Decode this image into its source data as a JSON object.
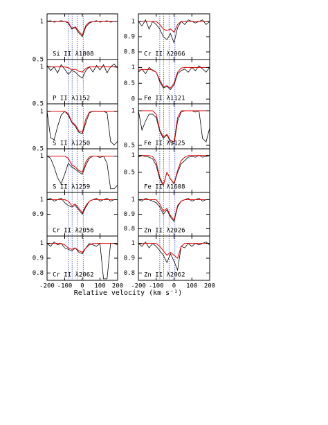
{
  "xlabel": "Relative velocity (km s⁻¹)",
  "vlines": [
    -80,
    -58,
    -28,
    5
  ],
  "chart_data": [
    {
      "type": "line",
      "label": "Si II λ1808",
      "ylim": [
        0.5,
        1.1
      ],
      "yticks": [
        0.5,
        1
      ],
      "xlim": [
        -200,
        200
      ],
      "xticks": [
        -200,
        -100,
        0,
        100,
        200
      ],
      "x": [
        -200,
        -180,
        -160,
        -140,
        -120,
        -100,
        -80,
        -60,
        -40,
        -20,
        0,
        20,
        40,
        60,
        80,
        100,
        120,
        140,
        160,
        180,
        200
      ],
      "series": [
        {
          "color": "#000000",
          "values": [
            1,
            1.01,
            0.99,
            1,
            1.01,
            1,
            0.98,
            0.9,
            0.92,
            0.85,
            0.8,
            0.93,
            0.98,
            1,
            1.01,
            0.99,
            1,
            1.01,
            0.99,
            1,
            1
          ]
        },
        {
          "color": "#e00000",
          "values": [
            1,
            1,
            1,
            1,
            1,
            1,
            0.99,
            0.91,
            0.93,
            0.87,
            0.82,
            0.95,
            0.99,
            1,
            1,
            1,
            1,
            1,
            1,
            1,
            1
          ]
        }
      ]
    },
    {
      "type": "line",
      "label": "P II λ1152",
      "ylim": [
        0.5,
        1.1
      ],
      "yticks": [
        0.5,
        1
      ],
      "xlim": [
        -200,
        200
      ],
      "xticks": [
        -200,
        -100,
        0,
        100,
        200
      ],
      "x": [
        -200,
        -180,
        -160,
        -140,
        -120,
        -100,
        -80,
        -60,
        -40,
        -20,
        0,
        20,
        40,
        60,
        80,
        100,
        120,
        140,
        160,
        180,
        200
      ],
      "series": [
        {
          "color": "#000000",
          "values": [
            1.02,
            0.95,
            1.0,
            0.92,
            1.03,
            0.97,
            0.9,
            0.95,
            0.93,
            0.88,
            0.85,
            0.95,
            1.0,
            0.93,
            1.02,
            0.96,
            1.03,
            0.92,
            1.0,
            1.04,
            0.98
          ]
        },
        {
          "color": "#e00000",
          "values": [
            1,
            1,
            1,
            1,
            1,
            1,
            0.99,
            0.96,
            0.97,
            0.94,
            0.93,
            0.98,
            1,
            1,
            1,
            1,
            1,
            1,
            1,
            1,
            1
          ]
        }
      ]
    },
    {
      "type": "line",
      "label": "S II λ1250",
      "ylim": [
        0.5,
        1.1
      ],
      "yticks": [
        0.5,
        1
      ],
      "xlim": [
        -200,
        200
      ],
      "xticks": [
        -200,
        -100,
        0,
        100,
        200
      ],
      "x": [
        -200,
        -180,
        -160,
        -140,
        -120,
        -100,
        -80,
        -60,
        -40,
        -20,
        0,
        20,
        40,
        60,
        80,
        100,
        120,
        140,
        160,
        180,
        200
      ],
      "series": [
        {
          "color": "#000000",
          "values": [
            1.0,
            0.65,
            0.62,
            0.8,
            0.95,
            1.0,
            0.95,
            0.85,
            0.8,
            0.72,
            0.7,
            0.85,
            0.98,
            1.0,
            1.0,
            1.0,
            1.0,
            0.98,
            0.6,
            0.55,
            0.6
          ]
        },
        {
          "color": "#e00000",
          "values": [
            1,
            1,
            1,
            1,
            1,
            1,
            0.97,
            0.86,
            0.82,
            0.74,
            0.72,
            0.9,
            0.99,
            1,
            1,
            1,
            1,
            1,
            1,
            1,
            1
          ]
        }
      ]
    },
    {
      "type": "line",
      "label": "S II λ1259",
      "ylim": [
        0.5,
        1.1
      ],
      "yticks": [
        1
      ],
      "xlim": [
        -200,
        200
      ],
      "xticks": [
        -200,
        -100,
        0,
        100,
        200
      ],
      "x": [
        -200,
        -180,
        -160,
        -140,
        -120,
        -100,
        -80,
        -60,
        -40,
        -20,
        0,
        20,
        40,
        60,
        80,
        100,
        120,
        140,
        160,
        180,
        200
      ],
      "series": [
        {
          "color": "#000000",
          "values": [
            1.0,
            0.97,
            0.85,
            0.7,
            0.62,
            0.75,
            0.9,
            0.85,
            0.82,
            0.78,
            0.75,
            0.88,
            0.97,
            1.0,
            1.0,
            0.98,
            1.0,
            0.9,
            0.55,
            0.55,
            0.6
          ]
        },
        {
          "color": "#e00000",
          "values": [
            1,
            1,
            1,
            1,
            1,
            1,
            0.97,
            0.88,
            0.85,
            0.8,
            0.78,
            0.92,
            0.99,
            1,
            1,
            1,
            1,
            1,
            1,
            1,
            1
          ]
        }
      ]
    },
    {
      "type": "line",
      "label": "Cr II λ2056",
      "ylim": [
        0.75,
        1.05
      ],
      "yticks": [
        0.9,
        1
      ],
      "xlim": [
        -200,
        200
      ],
      "xticks": [
        -200,
        -100,
        0,
        100,
        200
      ],
      "x": [
        -200,
        -180,
        -160,
        -140,
        -120,
        -100,
        -80,
        -60,
        -40,
        -20,
        0,
        20,
        40,
        60,
        80,
        100,
        120,
        140,
        160,
        180,
        200
      ],
      "series": [
        {
          "color": "#000000",
          "values": [
            1.0,
            1.01,
            0.99,
            1.0,
            1.01,
            0.98,
            0.96,
            0.95,
            0.96,
            0.93,
            0.9,
            0.95,
            0.99,
            1.0,
            1.01,
            0.99,
            1.0,
            1.01,
            0.99,
            1.0,
            1.0
          ]
        },
        {
          "color": "#e00000",
          "values": [
            1,
            1,
            1,
            1,
            1,
            1,
            0.99,
            0.96,
            0.97,
            0.94,
            0.91,
            0.96,
            0.99,
            1,
            1,
            1,
            1,
            1,
            1,
            1,
            1
          ]
        }
      ]
    },
    {
      "type": "line",
      "label": "Cr II λ2062",
      "ylim": [
        0.75,
        1.05
      ],
      "yticks": [
        0.8,
        0.9,
        1
      ],
      "xlim": [
        -200,
        200
      ],
      "xticks": [
        -200,
        -100,
        0,
        100,
        200
      ],
      "x": [
        -200,
        -180,
        -160,
        -140,
        -120,
        -100,
        -80,
        -60,
        -40,
        -20,
        0,
        20,
        40,
        60,
        80,
        100,
        120,
        140,
        160,
        180,
        200
      ],
      "series": [
        {
          "color": "#000000",
          "values": [
            1.0,
            0.98,
            1.01,
            0.99,
            1.0,
            0.97,
            0.96,
            0.95,
            0.97,
            0.94,
            0.93,
            0.97,
            1.0,
            0.99,
            0.98,
            1.0,
            0.76,
            0.76,
            1.0,
            1.0,
            0.99
          ]
        },
        {
          "color": "#e00000",
          "values": [
            1,
            1,
            1,
            1,
            1,
            0.99,
            0.97,
            0.96,
            0.97,
            0.95,
            0.94,
            0.97,
            0.99,
            1,
            1,
            1,
            1,
            1,
            1,
            1,
            1
          ]
        }
      ]
    },
    {
      "type": "line",
      "label": "Cr II λ2066",
      "ylim": [
        0.75,
        1.05
      ],
      "yticks": [
        0.8,
        0.9,
        1
      ],
      "xlim": [
        -200,
        200
      ],
      "xticks": [
        -200,
        -100,
        0,
        100,
        200
      ],
      "x": [
        -200,
        -180,
        -160,
        -140,
        -120,
        -100,
        -80,
        -60,
        -40,
        -20,
        0,
        20,
        40,
        60,
        80,
        100,
        120,
        140,
        160,
        180,
        200
      ],
      "series": [
        {
          "color": "#000000",
          "values": [
            1.0,
            0.97,
            1.01,
            0.95,
            1.0,
            0.98,
            0.95,
            0.9,
            0.88,
            0.92,
            0.86,
            0.96,
            1.0,
            0.98,
            1.01,
            1.0,
            0.99,
            1.0,
            1.01,
            0.98,
            1.0
          ]
        },
        {
          "color": "#e00000",
          "values": [
            1,
            1,
            1,
            1,
            1,
            1,
            0.98,
            0.95,
            0.94,
            0.95,
            0.93,
            0.98,
            1,
            1,
            1,
            1,
            1,
            1,
            1,
            1,
            1
          ]
        }
      ]
    },
    {
      "type": "line",
      "label": "Fe II λ1121",
      "ylim": [
        -0.15,
        1.25
      ],
      "yticks": [
        0,
        0.5,
        1
      ],
      "xlim": [
        -200,
        200
      ],
      "xticks": [
        -200,
        -100,
        0,
        100,
        200
      ],
      "x": [
        -200,
        -180,
        -160,
        -140,
        -120,
        -100,
        -80,
        -60,
        -40,
        -20,
        0,
        20,
        40,
        60,
        80,
        100,
        120,
        140,
        160,
        180,
        200
      ],
      "series": [
        {
          "color": "#000000",
          "values": [
            0.85,
            0.95,
            0.8,
            1.0,
            0.9,
            0.85,
            0.55,
            0.35,
            0.4,
            0.3,
            0.45,
            0.8,
            0.9,
            0.95,
            0.85,
            1.0,
            0.9,
            1.05,
            0.95,
            0.85,
            1.0
          ]
        },
        {
          "color": "#e00000",
          "values": [
            0.92,
            0.93,
            0.93,
            0.94,
            0.92,
            0.85,
            0.6,
            0.4,
            0.42,
            0.35,
            0.5,
            0.85,
            0.98,
            1,
            1,
            1,
            1,
            1,
            1,
            1,
            1
          ]
        }
      ]
    },
    {
      "type": "line",
      "label": "Fe II λ1125",
      "ylim": [
        0.45,
        1.1
      ],
      "yticks": [
        0.5,
        1
      ],
      "xlim": [
        -200,
        200
      ],
      "xticks": [
        -200,
        -100,
        0,
        100,
        200
      ],
      "x": [
        -200,
        -180,
        -160,
        -140,
        -120,
        -100,
        -80,
        -60,
        -40,
        -20,
        0,
        20,
        40,
        60,
        80,
        100,
        120,
        140,
        160,
        180,
        200
      ],
      "series": [
        {
          "color": "#000000",
          "values": [
            1.0,
            0.72,
            0.85,
            0.95,
            0.95,
            0.9,
            0.7,
            0.6,
            0.65,
            0.55,
            0.52,
            0.85,
            0.98,
            1.0,
            1.0,
            1.0,
            0.98,
            1.0,
            0.6,
            0.55,
            0.75
          ]
        },
        {
          "color": "#e00000",
          "values": [
            1,
            1,
            1,
            1,
            1,
            0.95,
            0.72,
            0.62,
            0.66,
            0.57,
            0.55,
            0.9,
            1,
            1,
            1,
            1,
            1,
            1,
            1,
            1,
            1
          ]
        }
      ]
    },
    {
      "type": "line",
      "label": "Fe II λ1608",
      "ylim": [
        -0.1,
        1.2
      ],
      "yticks": [
        0.5,
        1
      ],
      "xlim": [
        -200,
        200
      ],
      "xticks": [
        -200,
        -100,
        0,
        100,
        200
      ],
      "x": [
        -200,
        -180,
        -160,
        -140,
        -120,
        -100,
        -80,
        -60,
        -40,
        -20,
        0,
        20,
        40,
        60,
        80,
        100,
        120,
        140,
        160,
        180,
        200
      ],
      "series": [
        {
          "color": "#000000",
          "values": [
            0.95,
            1.0,
            0.97,
            0.95,
            0.9,
            0.7,
            0.3,
            0.1,
            0.5,
            0.3,
            0.15,
            0.5,
            0.75,
            0.85,
            0.95,
            0.97,
            0.95,
            1.0,
            0.95,
            0.97,
            1.0
          ]
        },
        {
          "color": "#e00000",
          "values": [
            1,
            1,
            1,
            1,
            0.97,
            0.8,
            0.35,
            0.12,
            0.5,
            0.3,
            0.17,
            0.55,
            0.85,
            0.95,
            1,
            1,
            1,
            1,
            1,
            1,
            1
          ]
        }
      ]
    },
    {
      "type": "line",
      "label": "Zn II λ2026",
      "ylim": [
        0.75,
        1.05
      ],
      "yticks": [
        0.8,
        0.9,
        1
      ],
      "xlim": [
        -200,
        200
      ],
      "xticks": [
        -200,
        -100,
        0,
        100,
        200
      ],
      "x": [
        -200,
        -180,
        -160,
        -140,
        -120,
        -100,
        -80,
        -60,
        -40,
        -20,
        0,
        20,
        40,
        60,
        80,
        100,
        120,
        140,
        160,
        180,
        200
      ],
      "series": [
        {
          "color": "#000000",
          "values": [
            1.0,
            0.99,
            1.01,
            1.0,
            0.99,
            0.98,
            0.95,
            0.9,
            0.93,
            0.88,
            0.85,
            0.95,
            0.99,
            1.0,
            1.01,
            0.99,
            1.0,
            1.01,
            0.99,
            1.0,
            1.0
          ]
        },
        {
          "color": "#e00000",
          "values": [
            1,
            1,
            1,
            1,
            1,
            1,
            0.97,
            0.92,
            0.94,
            0.89,
            0.86,
            0.96,
            0.99,
            1,
            1,
            1,
            1,
            1,
            1,
            1,
            1
          ]
        }
      ]
    },
    {
      "type": "line",
      "label": "Zn II λ2062",
      "ylim": [
        0.75,
        1.05
      ],
      "yticks": [
        0.8,
        0.9,
        1
      ],
      "xlim": [
        -200,
        200
      ],
      "xticks": [
        -200,
        -100,
        0,
        100,
        200
      ],
      "x": [
        -200,
        -180,
        -160,
        -140,
        -120,
        -100,
        -80,
        -60,
        -40,
        -20,
        0,
        20,
        40,
        60,
        80,
        100,
        120,
        140,
        160,
        180,
        200
      ],
      "series": [
        {
          "color": "#000000",
          "values": [
            1.0,
            0.98,
            1.01,
            0.97,
            1.0,
            0.98,
            0.95,
            0.92,
            0.87,
            0.93,
            0.88,
            0.82,
            0.98,
            0.97,
            1.0,
            0.98,
            1.0,
            0.99,
            1.0,
            1.01,
            0.99
          ]
        },
        {
          "color": "#e00000",
          "values": [
            1,
            1,
            1,
            1,
            1,
            1,
            0.98,
            0.95,
            0.92,
            0.94,
            0.92,
            0.9,
            0.98,
            1,
            1,
            1,
            1,
            1,
            1,
            1,
            1
          ]
        }
      ]
    }
  ]
}
